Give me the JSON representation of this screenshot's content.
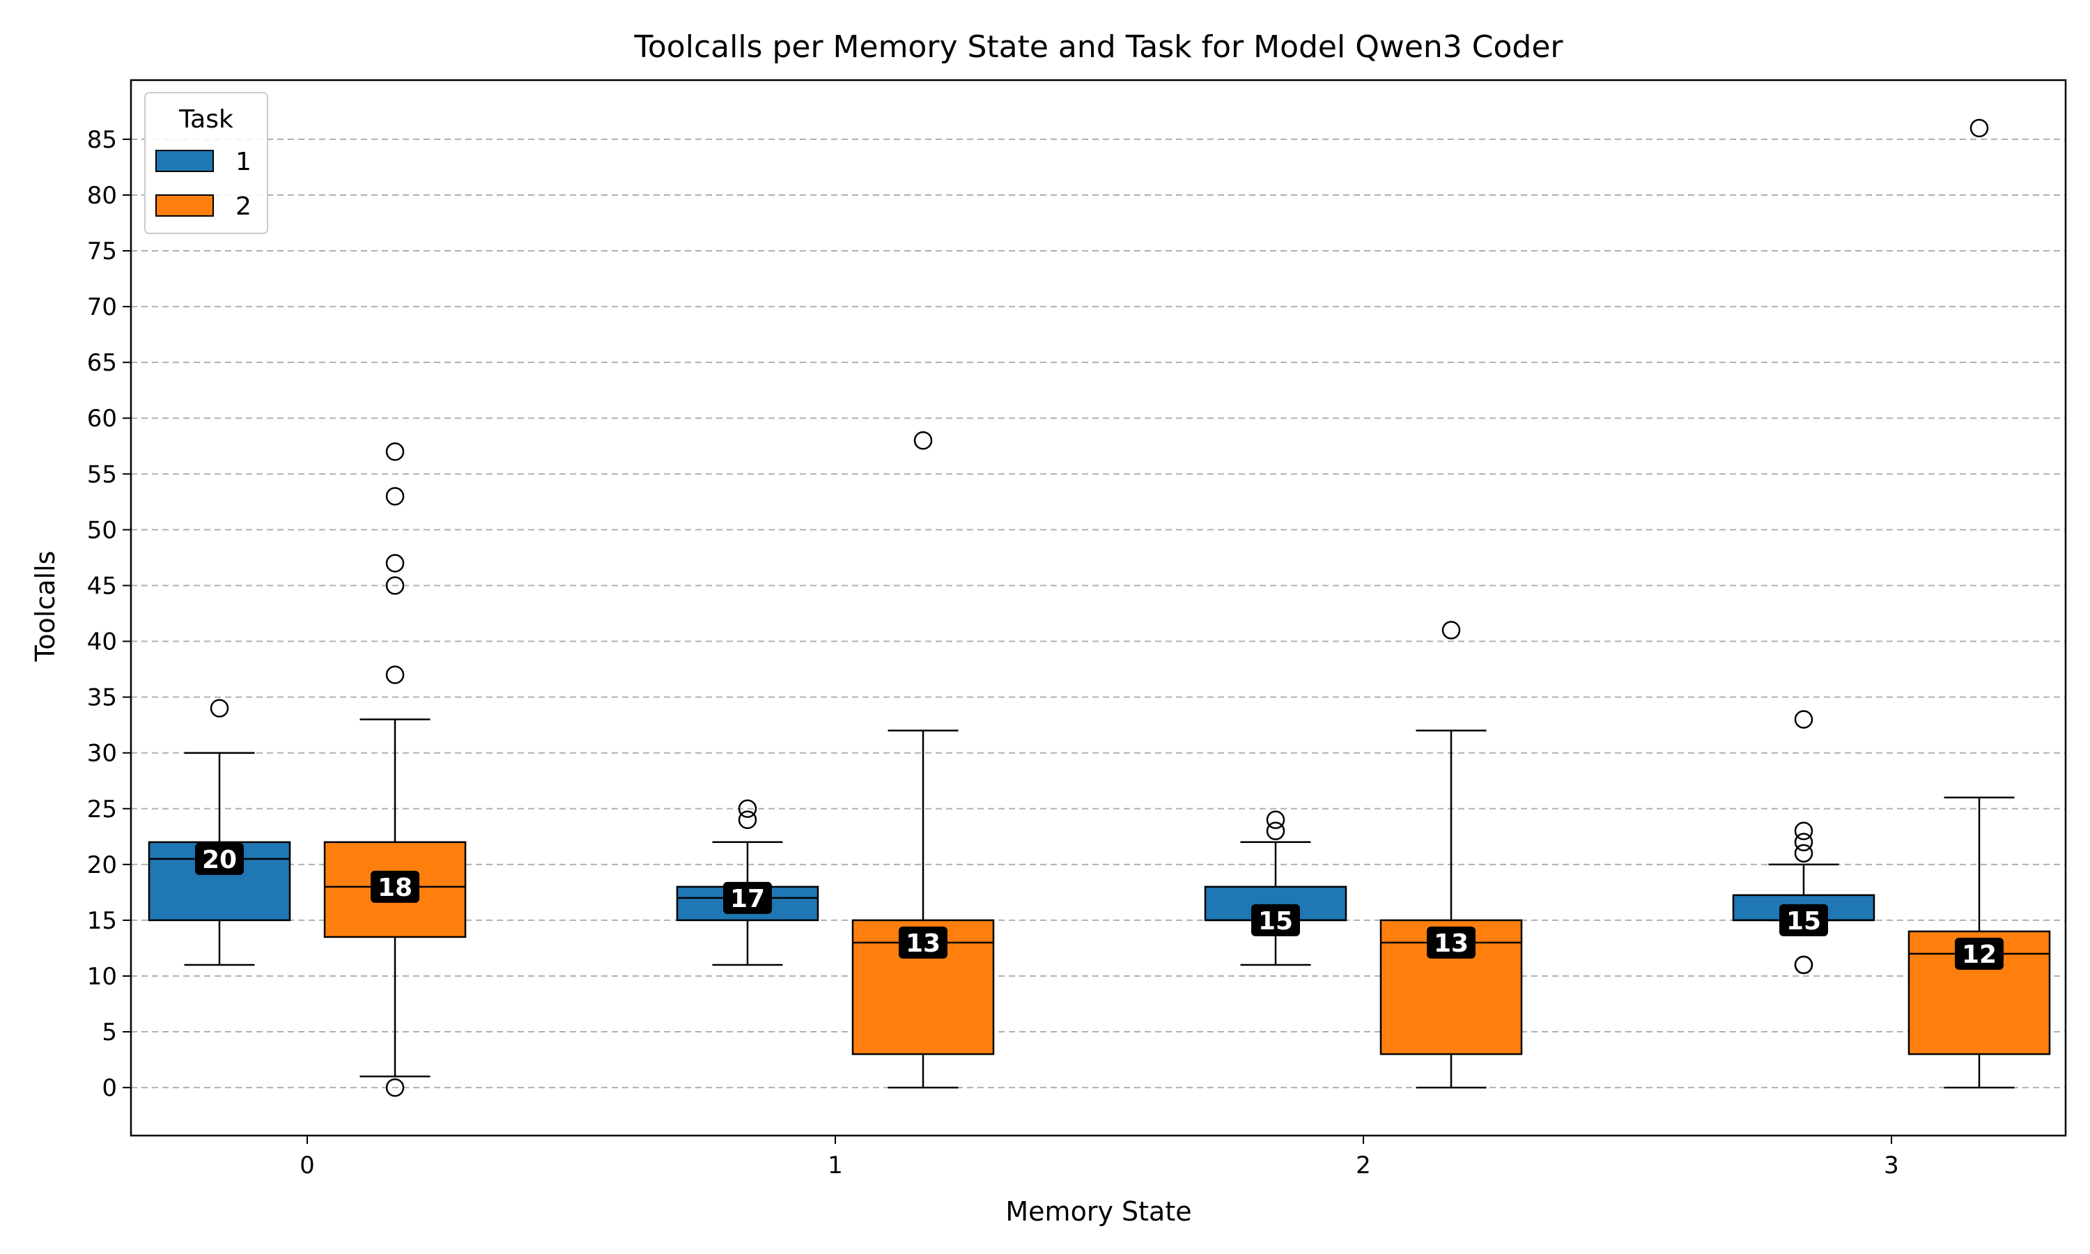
{
  "chart_data": {
    "type": "box",
    "title": "Toolcalls per Memory State and Task for Model Qwen3 Coder",
    "xlabel": "Memory State",
    "ylabel": "Toolcalls",
    "categories": [
      "0",
      "1",
      "2",
      "3"
    ],
    "yticks": [
      "0",
      "5",
      "10",
      "15",
      "20",
      "25",
      "30",
      "35",
      "40",
      "45",
      "50",
      "55",
      "60",
      "65",
      "70",
      "75",
      "80",
      "85"
    ],
    "ylim": [
      -4.3,
      90.3
    ],
    "grid": "horizontal dashed",
    "legend": {
      "title": "Task",
      "position": "top-left",
      "entries": [
        {
          "label": "1",
          "color": "#1f77b4"
        },
        {
          "label": "2",
          "color": "#ff7f0e"
        }
      ]
    },
    "series": [
      {
        "name": "1",
        "color": "#1f77b4",
        "boxes": [
          {
            "category": "0",
            "whisker_low": 11,
            "q1": 15,
            "median": 20.5,
            "q3": 22,
            "whisker_high": 30,
            "outliers": [
              34
            ],
            "median_label": "20"
          },
          {
            "category": "1",
            "whisker_low": 11,
            "q1": 15,
            "median": 17,
            "q3": 18,
            "whisker_high": 22,
            "outliers": [
              24,
              25
            ],
            "median_label": "17"
          },
          {
            "category": "2",
            "whisker_low": 11,
            "q1": 15,
            "median": 15,
            "q3": 18,
            "whisker_high": 22,
            "outliers": [
              23,
              24
            ],
            "median_label": "15"
          },
          {
            "category": "3",
            "whisker_low": 15,
            "q1": 15,
            "median": 15,
            "q3": 17.25,
            "whisker_high": 20,
            "outliers": [
              11,
              11,
              21,
              22,
              23,
              33
            ],
            "median_label": "15"
          }
        ]
      },
      {
        "name": "2",
        "color": "#ff7f0e",
        "boxes": [
          {
            "category": "0",
            "whisker_low": 1,
            "q1": 13.5,
            "median": 18,
            "q3": 22,
            "whisker_high": 33,
            "outliers": [
              0,
              37,
              45,
              47,
              53,
              57
            ],
            "median_label": "18"
          },
          {
            "category": "1",
            "whisker_low": 0,
            "q1": 3,
            "median": 13,
            "q3": 15,
            "whisker_high": 32,
            "outliers": [
              58
            ],
            "median_label": "13"
          },
          {
            "category": "2",
            "whisker_low": 0,
            "q1": 3,
            "median": 13,
            "q3": 15,
            "whisker_high": 32,
            "outliers": [
              41
            ],
            "median_label": "13"
          },
          {
            "category": "3",
            "whisker_low": 0,
            "q1": 3,
            "median": 12,
            "q3": 14,
            "whisker_high": 26,
            "outliers": [
              86
            ],
            "median_label": "12"
          }
        ]
      }
    ]
  }
}
